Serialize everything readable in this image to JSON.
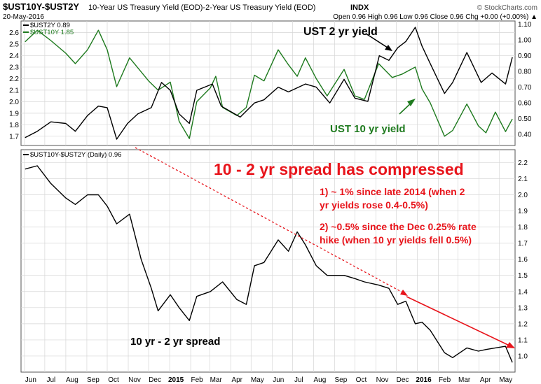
{
  "header": {
    "symbol": "$UST10Y-$UST2Y",
    "description": "10-Year US Treasury Yield (EOD)-2-Year US Treasury Yield (EOD)",
    "exchange": "INDX",
    "date": "20-May-2016",
    "ohlc": "Open 0.96  High 0.96  Low 0.96  Close 0.96  Chg +0.00 (+0.00%) ▲",
    "brand": "© StockCharts.com"
  },
  "colors": {
    "ust2y": "#000000",
    "ust10y": "#1e7a1e",
    "spread": "#000000",
    "annotation_red": "#e8141b",
    "grid": "#d6d6d6"
  },
  "annotations": {
    "ust2y_label": "UST 2 yr yield",
    "ust10y_label": "UST 10 yr yield",
    "headline": "10 - 2 yr spread has compressed",
    "point1_line1": "1) ~ 1% since late 2014 (when 2",
    "point1_line2": "yr yields rose 0.4-0.5%)",
    "point2_line1": "2) ~0.5% since the Dec 0.25% rate",
    "point2_line2": "hike (when 10 yr yields fell 0.5%)",
    "spread_label": "10 yr - 2 yr spread"
  },
  "chart_data": [
    {
      "type": "line",
      "panel": "top",
      "legend": [
        {
          "text": "$UST2Y 0.89",
          "color": "#000000"
        },
        {
          "text": "$UST10Y 1.85",
          "color": "#1e7a1e"
        }
      ],
      "left_axis": {
        "label": "$UST10Y",
        "ticks": [
          "2.6",
          "2.5",
          "2.4",
          "2.3",
          "2.2",
          "2.1",
          "2.0",
          "1.9",
          "1.8",
          "1.7"
        ],
        "range": [
          1.62,
          2.7
        ]
      },
      "right_axis": {
        "label": "$UST2Y",
        "ticks": [
          "1.10",
          "1.00",
          "0.90",
          "0.80",
          "0.70",
          "0.60",
          "0.50",
          "0.40"
        ],
        "range": [
          0.33,
          1.12
        ]
      },
      "series": [
        {
          "name": "$UST10Y",
          "axis": "left",
          "x": [
            "2014-06-02",
            "2014-06-20",
            "2014-07-10",
            "2014-08-01",
            "2014-08-15",
            "2014-09-02",
            "2014-09-18",
            "2014-10-01",
            "2014-10-15",
            "2014-11-03",
            "2014-12-01",
            "2014-12-15",
            "2015-01-02",
            "2015-01-15",
            "2015-01-30",
            "2015-02-10",
            "2015-03-02",
            "2015-03-10",
            "2015-03-20",
            "2015-04-10",
            "2015-04-24",
            "2015-05-06",
            "2015-05-20",
            "2015-06-10",
            "2015-06-25",
            "2015-07-08",
            "2015-07-20",
            "2015-08-05",
            "2015-08-21",
            "2015-09-15",
            "2015-10-01",
            "2015-10-15",
            "2015-11-05",
            "2015-11-15",
            "2015-11-25",
            "2015-12-10",
            "2015-12-29",
            "2016-01-08",
            "2016-01-20",
            "2016-02-10",
            "2016-02-22",
            "2016-03-14",
            "2016-03-31",
            "2016-04-11",
            "2016-04-25",
            "2016-05-10",
            "2016-05-20"
          ],
          "y": [
            2.52,
            2.62,
            2.53,
            2.42,
            2.33,
            2.45,
            2.62,
            2.45,
            2.13,
            2.38,
            2.18,
            2.1,
            2.17,
            1.83,
            1.68,
            2.0,
            2.12,
            2.22,
            1.95,
            1.88,
            1.95,
            2.23,
            2.18,
            2.45,
            2.32,
            2.22,
            2.38,
            2.2,
            2.05,
            2.28,
            2.05,
            2.02,
            2.33,
            2.27,
            2.21,
            2.24,
            2.3,
            2.11,
            1.99,
            1.7,
            1.75,
            1.98,
            1.79,
            1.73,
            1.91,
            1.74,
            1.85
          ]
        },
        {
          "name": "$UST2Y",
          "axis": "right",
          "x": [
            "2014-06-02",
            "2014-06-20",
            "2014-07-10",
            "2014-08-01",
            "2014-08-15",
            "2014-09-02",
            "2014-09-18",
            "2014-10-01",
            "2014-10-15",
            "2014-10-31",
            "2014-11-15",
            "2014-12-05",
            "2014-12-20",
            "2015-01-02",
            "2015-01-15",
            "2015-01-30",
            "2015-02-10",
            "2015-03-05",
            "2015-03-18",
            "2015-04-15",
            "2015-05-06",
            "2015-05-20",
            "2015-06-10",
            "2015-06-25",
            "2015-07-20",
            "2015-08-05",
            "2015-08-25",
            "2015-09-15",
            "2015-10-01",
            "2015-10-20",
            "2015-11-06",
            "2015-11-20",
            "2015-12-03",
            "2015-12-15",
            "2015-12-29",
            "2016-01-08",
            "2016-01-20",
            "2016-02-10",
            "2016-02-22",
            "2016-03-14",
            "2016-04-04",
            "2016-04-20",
            "2016-05-10",
            "2016-05-20"
          ],
          "y": [
            0.38,
            0.42,
            0.48,
            0.47,
            0.42,
            0.52,
            0.58,
            0.57,
            0.37,
            0.47,
            0.53,
            0.57,
            0.73,
            0.68,
            0.53,
            0.47,
            0.68,
            0.72,
            0.58,
            0.51,
            0.6,
            0.62,
            0.7,
            0.67,
            0.72,
            0.7,
            0.6,
            0.75,
            0.63,
            0.61,
            0.9,
            0.87,
            0.95,
            0.99,
            1.08,
            0.96,
            0.85,
            0.66,
            0.73,
            0.92,
            0.73,
            0.79,
            0.72,
            0.89
          ]
        }
      ]
    },
    {
      "type": "line",
      "panel": "bottom",
      "legend": [
        {
          "text": "$UST10Y-$UST2Y (Daily) 0.96",
          "color": "#000000"
        }
      ],
      "right_axis": {
        "ticks": [
          "2.2",
          "2.1",
          "2.0",
          "1.9",
          "1.8",
          "1.7",
          "1.6",
          "1.5",
          "1.4",
          "1.3",
          "1.2",
          "1.1",
          "1.0"
        ],
        "range": [
          0.9,
          2.28
        ]
      },
      "series": [
        {
          "name": "$UST10Y-$UST2Y",
          "x": [
            "2014-06-02",
            "2014-06-20",
            "2014-07-10",
            "2014-08-01",
            "2014-08-15",
            "2014-09-02",
            "2014-09-18",
            "2014-10-01",
            "2014-10-15",
            "2014-11-03",
            "2014-11-20",
            "2014-12-05",
            "2014-12-15",
            "2015-01-02",
            "2015-01-15",
            "2015-01-30",
            "2015-02-10",
            "2015-03-02",
            "2015-03-20",
            "2015-04-10",
            "2015-04-24",
            "2015-05-06",
            "2015-05-20",
            "2015-06-10",
            "2015-06-25",
            "2015-07-08",
            "2015-07-20",
            "2015-08-05",
            "2015-08-21",
            "2015-09-15",
            "2015-10-01",
            "2015-10-15",
            "2015-11-05",
            "2015-11-20",
            "2015-12-03",
            "2015-12-15",
            "2015-12-29",
            "2016-01-08",
            "2016-01-20",
            "2016-02-10",
            "2016-02-22",
            "2016-03-14",
            "2016-03-31",
            "2016-04-11",
            "2016-04-25",
            "2016-05-10",
            "2016-05-20"
          ],
          "y": [
            2.16,
            2.18,
            2.07,
            1.98,
            1.94,
            2.0,
            2.0,
            1.93,
            1.82,
            1.88,
            1.6,
            1.42,
            1.28,
            1.38,
            1.3,
            1.22,
            1.37,
            1.4,
            1.46,
            1.35,
            1.32,
            1.56,
            1.58,
            1.72,
            1.65,
            1.77,
            1.69,
            1.56,
            1.5,
            1.5,
            1.48,
            1.46,
            1.44,
            1.42,
            1.32,
            1.34,
            1.2,
            1.21,
            1.16,
            1.02,
            0.99,
            1.05,
            1.03,
            1.04,
            1.05,
            1.06,
            0.96
          ]
        }
      ]
    }
  ],
  "x_axis": {
    "labels": [
      "Jun",
      "Jul",
      "Aug",
      "Sep",
      "Oct",
      "Nov",
      "Dec",
      "2015",
      "Feb",
      "Mar",
      "Apr",
      "May",
      "Jun",
      "Jul",
      "Aug",
      "Sep",
      "Oct",
      "Nov",
      "Dec",
      "2016",
      "Feb",
      "Mar",
      "Apr",
      "May"
    ],
    "bold": [
      "2015",
      "2016"
    ]
  }
}
